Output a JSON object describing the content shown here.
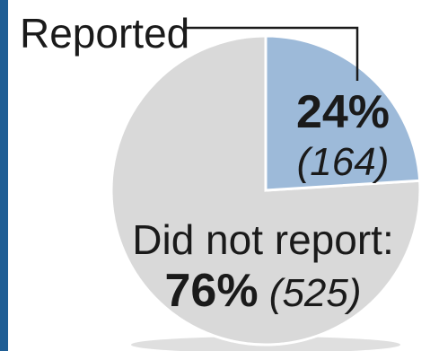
{
  "chart_data": {
    "type": "pie",
    "title": "",
    "colors": {
      "frame": "#1f5e95",
      "reported": "#9dbad9",
      "did_not_report": "#d9d9d9",
      "separator": "#ffffff",
      "leader": "#1a1a1a",
      "shadow": "#c4c4c4"
    },
    "slices": [
      {
        "label": "Reported",
        "percent": 24,
        "percent_text": "24%",
        "count": 164,
        "count_text": "(164)"
      },
      {
        "label": "Did not report:",
        "percent": 76,
        "percent_text": "76%",
        "count": 525,
        "count_text": "(525)"
      }
    ]
  }
}
